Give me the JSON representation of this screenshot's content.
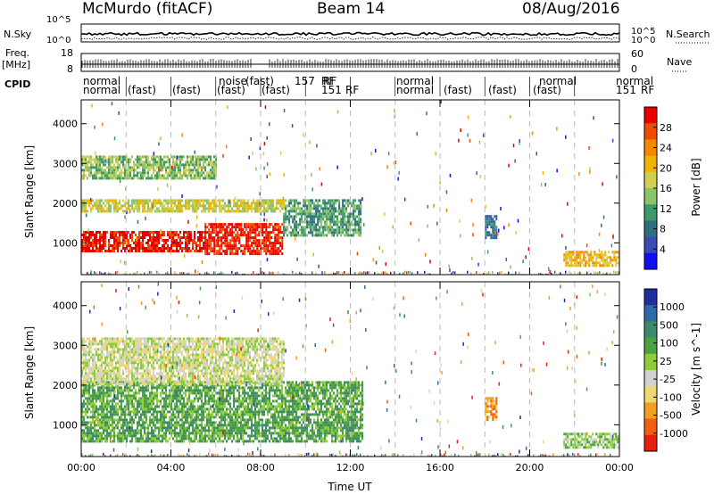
{
  "header": {
    "station": "McMurdo (fitACF)",
    "beam": "Beam 14",
    "date": "08/Aug/2016"
  },
  "left_labels": {
    "n_sky": "N.Sky",
    "freq": "Freq.",
    "freq_unit": "[MHz]",
    "cpid": "CPID"
  },
  "right_labels": {
    "n_search": "N.Search",
    "nave": "Nave"
  },
  "noise_axis": {
    "top": "10^5",
    "bottom": "10^0"
  },
  "freq_axis": {
    "top": "18",
    "bottom": "8"
  },
  "nave_axis": {
    "top": "60",
    "bottom": "0"
  },
  "cpid_row1": [
    "normal",
    "normal",
    "normal",
    "normal",
    "noise",
    "(fast)",
    "RF",
    "157",
    "RF"
  ],
  "cpid_row2": [
    "normal",
    "(fast)",
    "(fast)",
    "(fast)",
    "(fast)",
    "151",
    "RF",
    "normal",
    "(fast)",
    "(fast)",
    "(fast)",
    "151",
    "RF"
  ],
  "chart_data": [
    {
      "type": "heatmap",
      "title": "Power",
      "xlabel": "",
      "ylabel": "Slant Range [km]",
      "xlim": [
        0,
        24
      ],
      "ylim": [
        200,
        4600
      ],
      "x_ticks": [
        "00:00",
        "04:00",
        "08:00",
        "12:00",
        "16:00",
        "20:00",
        "00:00"
      ],
      "y_ticks": [
        1000,
        2000,
        3000,
        4000
      ],
      "colorbar": {
        "label": "Power [dB]",
        "ticks": [
          28,
          24,
          20,
          16,
          12,
          8,
          4
        ],
        "colors": [
          "#e60000",
          "#f24a00",
          "#f08a00",
          "#f0b400",
          "#cfd050",
          "#8cc26a",
          "#3f9a6a",
          "#2d6f7e",
          "#3a4bb2",
          "#1010ee"
        ]
      },
      "regions": [
        {
          "x": [
            0.0,
            5.5
          ],
          "y": [
            800,
            1300
          ],
          "value": 28
        },
        {
          "x": [
            5.5,
            9.0
          ],
          "y": [
            700,
            1500
          ],
          "value": 26
        },
        {
          "x": [
            9.0,
            12.5
          ],
          "y": [
            1200,
            2100
          ],
          "value": 12
        },
        {
          "x": [
            0.0,
            9.0
          ],
          "y": [
            1800,
            2100
          ],
          "value": 18
        },
        {
          "x": [
            0.0,
            6.0
          ],
          "y": [
            2600,
            3200
          ],
          "value": 16
        },
        {
          "x": [
            18.0,
            18.5
          ],
          "y": [
            1100,
            1700
          ],
          "value": 10
        },
        {
          "x": [
            21.5,
            24.0
          ],
          "y": [
            450,
            800
          ],
          "value": 20
        }
      ]
    },
    {
      "type": "heatmap",
      "title": "Velocity",
      "xlabel": "Time UT",
      "ylabel": "Slant Range [km]",
      "xlim": [
        0,
        24
      ],
      "ylim": [
        200,
        4600
      ],
      "x_ticks": [
        "00:00",
        "04:00",
        "08:00",
        "12:00",
        "16:00",
        "20:00",
        "00:00"
      ],
      "y_ticks": [
        1000,
        2000,
        3000,
        4000
      ],
      "colorbar": {
        "label": "Velocity [m s^-1]",
        "ticks": [
          1000,
          500,
          100,
          25,
          -25,
          -100,
          -500,
          -1000
        ],
        "colors": [
          "#1c2f9c",
          "#2c6aa8",
          "#3d8a6a",
          "#4aa340",
          "#8fcc3a",
          "#d2d2d2",
          "#f0d870",
          "#f0a020",
          "#f06010",
          "#e62010"
        ]
      },
      "regions": [
        {
          "x": [
            0.0,
            12.5
          ],
          "y": [
            600,
            2100
          ],
          "value": 300
        },
        {
          "x": [
            0.0,
            9.0
          ],
          "y": [
            2000,
            3200
          ],
          "value": 0
        },
        {
          "x": [
            18.0,
            18.5
          ],
          "y": [
            1100,
            1700
          ],
          "value": -500
        },
        {
          "x": [
            21.5,
            24.0
          ],
          "y": [
            450,
            800
          ],
          "value": 100
        }
      ]
    }
  ]
}
